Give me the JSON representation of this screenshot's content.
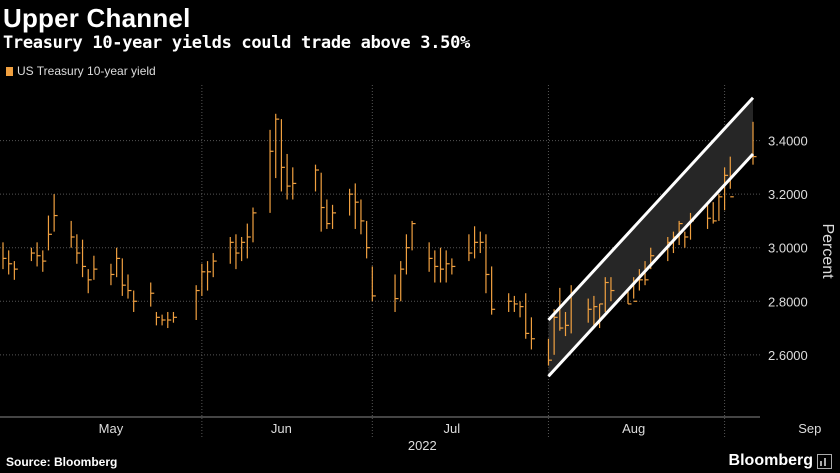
{
  "title": "Upper Channel",
  "subtitle": "Treasury 10-year yields could trade above 3.50%",
  "source": "Source: Bloomberg",
  "brand": "Bloomberg",
  "colors": {
    "series": "#f0a040",
    "channel": "#ffffff",
    "grid": "#555555"
  },
  "chart_data": {
    "type": "bar",
    "style": "ohlc",
    "title": "Upper Channel",
    "subtitle": "Treasury 10-year yields could trade above 3.50%",
    "ylabel": "Percent",
    "xlabel": "2022",
    "ylim": [
      2.45,
      3.6
    ],
    "yticks": [
      "2.6000",
      "2.8000",
      "3.0000",
      "3.2000",
      "3.4000"
    ],
    "xticks": [
      "May",
      "Jun",
      "Jul",
      "Aug",
      "Sep"
    ],
    "xtick_dates": [
      "2022-05-16",
      "2022-06-15",
      "2022-07-15",
      "2022-08-16",
      "2022-09-16"
    ],
    "month_boundaries": [
      "2022-06-01",
      "2022-07-01",
      "2022-08-01",
      "2022-09-01"
    ],
    "xrange": [
      "2022-04-27",
      "2022-09-06"
    ],
    "grid": true,
    "legend": {
      "position": "top-left",
      "entries": [
        "US Treasury 10-year yield"
      ]
    },
    "series": [
      {
        "name": "US Treasury 10-year yield",
        "dates": [
          "2022-04-27",
          "2022-04-28",
          "2022-04-29",
          "2022-05-02",
          "2022-05-03",
          "2022-05-04",
          "2022-05-05",
          "2022-05-06",
          "2022-05-09",
          "2022-05-10",
          "2022-05-11",
          "2022-05-12",
          "2022-05-13",
          "2022-05-16",
          "2022-05-17",
          "2022-05-18",
          "2022-05-19",
          "2022-05-20",
          "2022-05-23",
          "2022-05-24",
          "2022-05-25",
          "2022-05-26",
          "2022-05-27",
          "2022-05-31",
          "2022-06-01",
          "2022-06-02",
          "2022-06-03",
          "2022-06-06",
          "2022-06-07",
          "2022-06-08",
          "2022-06-09",
          "2022-06-10",
          "2022-06-13",
          "2022-06-14",
          "2022-06-15",
          "2022-06-16",
          "2022-06-17",
          "2022-06-21",
          "2022-06-22",
          "2022-06-23",
          "2022-06-24",
          "2022-06-27",
          "2022-06-28",
          "2022-06-29",
          "2022-06-30",
          "2022-07-01",
          "2022-07-05",
          "2022-07-06",
          "2022-07-07",
          "2022-07-08",
          "2022-07-11",
          "2022-07-12",
          "2022-07-13",
          "2022-07-14",
          "2022-07-15",
          "2022-07-18",
          "2022-07-19",
          "2022-07-20",
          "2022-07-21",
          "2022-07-22",
          "2022-07-25",
          "2022-07-26",
          "2022-07-27",
          "2022-07-28",
          "2022-07-29",
          "2022-08-01",
          "2022-08-02",
          "2022-08-03",
          "2022-08-04",
          "2022-08-05",
          "2022-08-08",
          "2022-08-09",
          "2022-08-10",
          "2022-08-11",
          "2022-08-12",
          "2022-08-15",
          "2022-08-16",
          "2022-08-17",
          "2022-08-18",
          "2022-08-19",
          "2022-08-22",
          "2022-08-23",
          "2022-08-24",
          "2022-08-25",
          "2022-08-26",
          "2022-08-29",
          "2022-08-30",
          "2022-08-31",
          "2022-09-01",
          "2022-09-02",
          "2022-09-06"
        ],
        "high": [
          3.02,
          2.99,
          2.95,
          3.0,
          3.02,
          2.99,
          3.12,
          3.2,
          3.1,
          3.05,
          3.03,
          2.92,
          2.97,
          2.94,
          3.0,
          2.96,
          2.9,
          2.84,
          2.87,
          2.76,
          2.75,
          2.76,
          2.76,
          2.86,
          2.94,
          2.95,
          2.98,
          3.04,
          3.05,
          3.04,
          3.09,
          3.15,
          3.44,
          3.5,
          3.48,
          3.35,
          3.3,
          3.31,
          3.28,
          3.18,
          3.16,
          3.22,
          3.24,
          3.18,
          3.1,
          2.93,
          2.9,
          2.95,
          3.05,
          3.1,
          3.02,
          2.99,
          3.0,
          2.99,
          2.96,
          3.05,
          3.08,
          3.06,
          3.05,
          2.93,
          2.83,
          2.82,
          2.8,
          2.83,
          2.74,
          2.66,
          2.77,
          2.85,
          2.76,
          2.86,
          2.81,
          2.82,
          2.79,
          2.89,
          2.89,
          2.84,
          2.89,
          2.92,
          2.95,
          3.0,
          3.04,
          3.06,
          3.1,
          3.06,
          3.13,
          3.16,
          3.17,
          3.2,
          3.3,
          3.34,
          3.47
        ],
        "low": [
          2.92,
          2.9,
          2.88,
          2.95,
          2.93,
          2.91,
          2.99,
          3.06,
          3.0,
          2.94,
          2.89,
          2.83,
          2.88,
          2.86,
          2.89,
          2.82,
          2.81,
          2.76,
          2.78,
          2.71,
          2.71,
          2.7,
          2.72,
          2.73,
          2.82,
          2.84,
          2.89,
          2.94,
          2.92,
          2.95,
          2.96,
          3.02,
          3.13,
          3.26,
          3.21,
          3.18,
          3.18,
          3.21,
          3.06,
          3.07,
          3.07,
          3.12,
          3.07,
          3.05,
          2.96,
          2.8,
          2.76,
          2.8,
          2.9,
          2.99,
          2.91,
          2.87,
          2.87,
          2.87,
          2.9,
          2.95,
          2.96,
          2.98,
          2.83,
          2.75,
          2.76,
          2.76,
          2.74,
          2.66,
          2.62,
          2.56,
          2.6,
          2.69,
          2.67,
          2.68,
          2.72,
          2.71,
          2.7,
          2.76,
          2.8,
          2.79,
          2.81,
          2.84,
          2.86,
          2.92,
          2.95,
          2.98,
          3.01,
          3.0,
          3.03,
          3.07,
          3.09,
          3.1,
          3.14,
          3.22,
          3.31
        ],
        "close": [
          2.96,
          2.94,
          2.92,
          2.98,
          2.97,
          2.95,
          3.05,
          3.12,
          3.04,
          2.98,
          2.93,
          2.88,
          2.92,
          2.9,
          2.96,
          2.86,
          2.84,
          2.8,
          2.83,
          2.74,
          2.73,
          2.73,
          2.74,
          2.84,
          2.91,
          2.91,
          2.95,
          3.02,
          2.98,
          3.02,
          3.04,
          3.13,
          3.36,
          3.48,
          3.3,
          3.23,
          3.24,
          3.29,
          3.15,
          3.09,
          3.13,
          3.2,
          3.17,
          3.1,
          3.0,
          2.82,
          2.81,
          2.92,
          3.0,
          3.09,
          2.96,
          2.93,
          2.92,
          2.94,
          2.93,
          2.98,
          3.02,
          3.02,
          2.9,
          2.77,
          2.8,
          2.79,
          2.78,
          2.68,
          2.66,
          2.58,
          2.74,
          2.7,
          2.71,
          2.83,
          2.77,
          2.78,
          2.79,
          2.87,
          2.84,
          2.79,
          2.8,
          2.88,
          2.88,
          2.97,
          3.02,
          3.04,
          3.09,
          3.04,
          3.1,
          3.11,
          3.1,
          3.19,
          3.27,
          3.19,
          3.34
        ]
      }
    ],
    "annotations": [
      {
        "type": "channel-line",
        "name": "upper",
        "from": {
          "date": "2022-08-01",
          "value": 2.73
        },
        "to": {
          "date": "2022-09-06",
          "value": 3.56
        }
      },
      {
        "type": "channel-line",
        "name": "lower",
        "from": {
          "date": "2022-08-01",
          "value": 2.52
        },
        "to": {
          "date": "2022-09-06",
          "value": 3.35
        }
      }
    ]
  }
}
